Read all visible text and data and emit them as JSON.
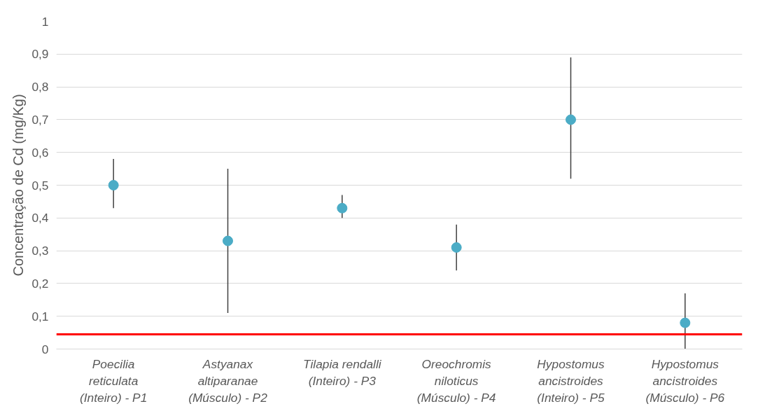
{
  "chart_data": {
    "type": "scatter",
    "ylabel": "Concentração de Cd (mg/Kg)",
    "categories": [
      "Poecilia\nreticulata\n(Inteiro) - P1",
      "Astyanax\naltiparanae\n(Músculo) - P2",
      "Tilapia rendalli\n(Inteiro) - P3",
      "Oreochromis\nniloticus\n(Músculo) - P4",
      "Hypostomus\nancistroides\n(Inteiro) - P5",
      "Hypostomus\nancistroides\n(Músculo) - P6"
    ],
    "series": [
      {
        "color": "#4bacc6",
        "values": [
          0.5,
          0.33,
          0.43,
          0.31,
          0.7,
          0.08
        ],
        "errors": [
          [
            0.43,
            0.58
          ],
          [
            0.11,
            0.55
          ],
          [
            0.4,
            0.47
          ],
          [
            0.24,
            0.38
          ],
          [
            0.52,
            0.89
          ],
          [
            0.0,
            0.17
          ]
        ]
      }
    ],
    "ylim": [
      0,
      1
    ],
    "yticks": [
      0,
      {
        "value": 0.1,
        "label": "0,1"
      },
      {
        "value": 0.2,
        "label": "0,2"
      },
      {
        "value": 0.3,
        "label": "0,3"
      },
      {
        "value": 0.4,
        "label": "0,4"
      },
      {
        "value": 0.5,
        "label": "0,5"
      },
      {
        "value": 0.6,
        "label": "0,6"
      },
      {
        "value": 0.7,
        "label": "0,7"
      },
      {
        "value": 0.8,
        "label": "0,8"
      },
      {
        "value": 0.9,
        "label": "0,9"
      },
      1
    ],
    "grid": "y",
    "marker": "circle",
    "ref_lines": [
      {
        "axis": "y",
        "value": 0.045,
        "color": "#ff0000"
      }
    ]
  }
}
